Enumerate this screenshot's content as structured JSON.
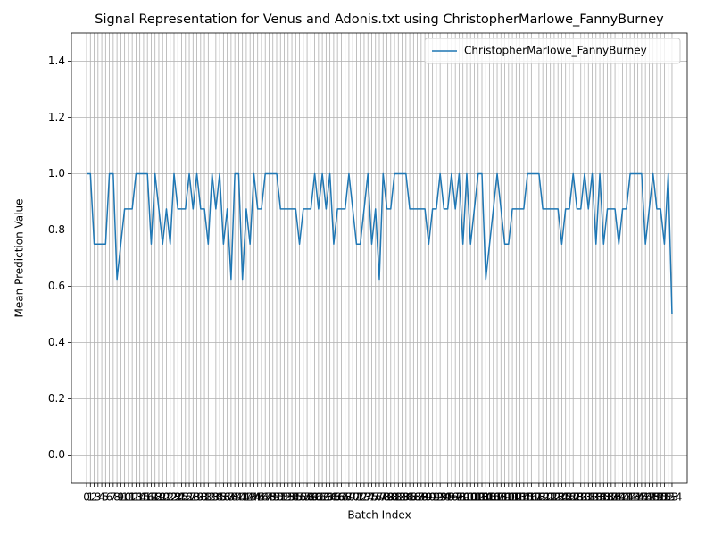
{
  "chart_data": {
    "type": "line",
    "title": "Signal Representation for Venus and Adonis.txt using ChristopherMarlowe_FannyBurney",
    "xlabel": "Batch Index",
    "ylabel": "Mean Prediction Value",
    "x": [
      0,
      1,
      2,
      3,
      4,
      5,
      6,
      7,
      8,
      9,
      10,
      11,
      12,
      13,
      14,
      15,
      16,
      17,
      18,
      19,
      20,
      21,
      22,
      23,
      24,
      25,
      26,
      27,
      28,
      29,
      30,
      31,
      32,
      33,
      34,
      35,
      36,
      37,
      38,
      39,
      40,
      41,
      42,
      43,
      44,
      45,
      46,
      47,
      48,
      49,
      50,
      51,
      52,
      53,
      54,
      55,
      56,
      57,
      58,
      59,
      60,
      61,
      62,
      63,
      64,
      65,
      66,
      67,
      68,
      69,
      70,
      71,
      72,
      73,
      74,
      75,
      76,
      77,
      78,
      79,
      80,
      81,
      82,
      83,
      84,
      85,
      86,
      87,
      88,
      89,
      90,
      91,
      92,
      93,
      94,
      95,
      96,
      97,
      98,
      99,
      100,
      101,
      102,
      103,
      104,
      105,
      106,
      107,
      108,
      109,
      110,
      111,
      112,
      113,
      114,
      115,
      116,
      117,
      118,
      119,
      120,
      121,
      122,
      123,
      124,
      125,
      126,
      127,
      128,
      129,
      130,
      131,
      132,
      133,
      134,
      135,
      136,
      137,
      138,
      139,
      140,
      141,
      142,
      143,
      144,
      145,
      146,
      147,
      148,
      149,
      150,
      151,
      152,
      153,
      154
    ],
    "series": [
      {
        "name": "ChristopherMarlowe_FannyBurney",
        "color": "#1f77b4",
        "values": [
          1,
          1,
          0.75,
          0.75,
          0.75,
          0.75,
          1,
          1,
          0.625,
          0.75,
          0.875,
          0.875,
          0.875,
          1,
          1,
          1,
          1,
          0.75,
          1,
          0.875,
          0.75,
          0.875,
          0.75,
          1,
          0.875,
          0.875,
          0.875,
          1,
          0.875,
          1,
          0.875,
          0.875,
          0.75,
          1,
          0.875,
          1,
          0.75,
          0.875,
          0.625,
          1,
          1,
          0.625,
          0.875,
          0.75,
          1,
          0.875,
          0.875,
          1,
          1,
          1,
          1,
          0.875,
          0.875,
          0.875,
          0.875,
          0.875,
          0.75,
          0.875,
          0.875,
          0.875,
          1,
          0.875,
          1,
          0.875,
          1,
          0.75,
          0.875,
          0.875,
          0.875,
          1,
          0.875,
          0.75,
          0.75,
          0.875,
          1,
          0.75,
          0.875,
          0.625,
          1,
          0.875,
          0.875,
          1,
          1,
          1,
          1,
          0.875,
          0.875,
          0.875,
          0.875,
          0.875,
          0.75,
          0.875,
          0.875,
          1,
          0.875,
          0.875,
          1,
          0.875,
          1,
          0.75,
          1,
          0.75,
          0.875,
          1,
          1,
          0.625,
          0.75,
          0.875,
          1,
          0.875,
          0.75,
          0.75,
          0.875,
          0.875,
          0.875,
          0.875,
          1,
          1,
          1,
          1,
          0.875,
          0.875,
          0.875,
          0.875,
          0.875,
          0.75,
          0.875,
          0.875,
          1,
          0.875,
          0.875,
          1,
          0.875,
          1,
          0.75,
          1,
          0.75,
          0.875,
          0.875,
          0.875,
          0.75,
          0.875,
          0.875,
          1,
          1,
          1,
          1,
          0.75,
          0.875,
          1,
          0.875,
          0.875,
          0.75,
          1,
          0.5
        ]
      }
    ],
    "xlim": [
      -4,
      158
    ],
    "xticks": [
      0,
      1,
      2,
      3,
      4,
      5,
      6,
      7,
      8,
      9,
      10,
      11,
      12,
      13,
      14,
      15,
      16,
      17,
      18,
      19,
      20,
      21,
      22,
      23,
      24,
      25,
      26,
      27,
      28,
      29,
      30,
      31,
      32,
      33,
      34,
      35,
      36,
      37,
      38,
      39,
      40,
      41,
      42,
      43,
      44,
      45,
      46,
      47,
      48,
      49,
      50,
      51,
      52,
      53,
      54,
      55,
      56,
      57,
      58,
      59,
      60,
      61,
      62,
      63,
      64,
      65,
      66,
      67,
      68,
      69,
      70,
      71,
      72,
      73,
      74,
      75,
      76,
      77,
      78,
      79,
      80,
      81,
      82,
      83,
      84,
      85,
      86,
      87,
      88,
      89,
      90,
      91,
      92,
      93,
      94,
      95,
      96,
      97,
      98,
      99,
      100,
      101,
      102,
      103,
      104,
      105,
      106,
      107,
      108,
      109,
      110,
      111,
      112,
      113,
      114,
      115,
      116,
      117,
      118,
      119,
      120,
      121,
      122,
      123,
      124,
      125,
      126,
      127,
      128,
      129,
      130,
      131,
      132,
      133,
      134,
      135,
      136,
      137,
      138,
      139,
      140,
      141,
      142,
      143,
      144,
      145,
      146,
      147,
      148,
      149,
      150,
      151,
      152,
      153,
      154
    ],
    "ylim": [
      -0.1,
      1.5
    ],
    "yticks": [
      {
        "value": 0,
        "label": "0.0"
      },
      0.2,
      0.4,
      0.6,
      0.8,
      {
        "value": 1,
        "label": "1.0"
      },
      1.2,
      1.4
    ],
    "grid": true,
    "legend": "upper right"
  }
}
